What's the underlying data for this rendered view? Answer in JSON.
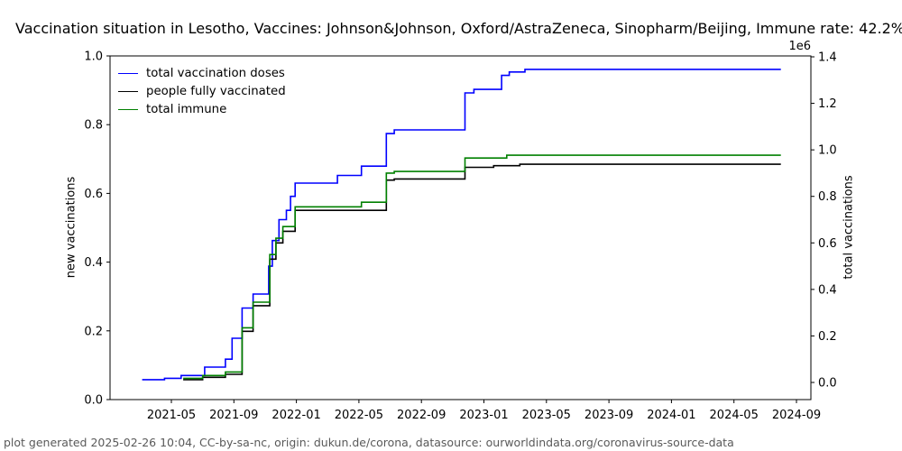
{
  "title": "Vaccination situation in Lesotho, Vaccines: Johnson&Johnson, Oxford/AstraZeneca, Sinopharm/Beijing, Immune rate: 42.2%",
  "footer": "plot generated 2025-02-26 10:04, CC-by-sa-nc, origin: dukun.de/corona, datasource: ourworldindata.org/coronavirus-source-data",
  "colors": {
    "total_vaccination_doses": "#0000ff",
    "people_fully_vaccinated": "#000000",
    "total_immune": "#008000",
    "axis": "#000000",
    "footer_text": "#595959"
  },
  "chart_data": {
    "type": "line",
    "step_style": "step-after",
    "title": "Vaccination situation in Lesotho, Vaccines: Johnson&Johnson, Oxford/AstraZeneca, Sinopharm/Beijing, Immune rate: 42.2%",
    "grid": false,
    "legend_position": "upper left",
    "legend": [
      "total vaccination doses",
      "people fully vaccinated",
      "total immune"
    ],
    "left_axis": {
      "label": "new vaccinations",
      "ticks": [
        "0.0",
        "0.2",
        "0.4",
        "0.6",
        "0.8",
        "1.0"
      ],
      "range": [
        0.0,
        1.0
      ]
    },
    "right_axis": {
      "label": "total vaccinations",
      "offset_text": "1e6",
      "ticks": [
        "0.0",
        "0.2",
        "0.4",
        "0.6",
        "0.8",
        "1.0",
        "1.2",
        "1.4"
      ],
      "range_e6": [
        -0.074,
        1.404
      ]
    },
    "x_axis": {
      "ticks": [
        "2021-05",
        "2021-09",
        "2022-01",
        "2022-05",
        "2022-09",
        "2023-01",
        "2023-05",
        "2023-09",
        "2024-01",
        "2024-05",
        "2024-09"
      ],
      "range": [
        "2021-01-03",
        "2024-09-28"
      ]
    },
    "series": [
      {
        "name": "total vaccination doses",
        "color": "#0000ff",
        "axis": "right",
        "unit": "1e6 doses",
        "points": [
          [
            "2021-03-05",
            0.012
          ],
          [
            "2021-04-18",
            0.018
          ],
          [
            "2021-05-20",
            0.03
          ],
          [
            "2021-07-05",
            0.066
          ],
          [
            "2021-08-15",
            0.1
          ],
          [
            "2021-08-28",
            0.19
          ],
          [
            "2021-09-17",
            0.32
          ],
          [
            "2021-10-08",
            0.38
          ],
          [
            "2021-11-08",
            0.5
          ],
          [
            "2021-11-15",
            0.61
          ],
          [
            "2021-11-28",
            0.7
          ],
          [
            "2021-12-12",
            0.74
          ],
          [
            "2021-12-20",
            0.8
          ],
          [
            "2021-12-29",
            0.857
          ],
          [
            "2022-03-20",
            0.89
          ],
          [
            "2022-05-06",
            0.93
          ],
          [
            "2022-06-24",
            1.07
          ],
          [
            "2022-07-09",
            1.086
          ],
          [
            "2022-11-25",
            1.245
          ],
          [
            "2022-12-12",
            1.26
          ],
          [
            "2023-02-05",
            1.32
          ],
          [
            "2023-02-20",
            1.335
          ],
          [
            "2023-03-20",
            1.346
          ],
          [
            "2024-08-01",
            1.346
          ]
        ]
      },
      {
        "name": "people fully vaccinated",
        "color": "#000000",
        "axis": "right",
        "unit": "1e6 people",
        "points": [
          [
            "2021-05-24",
            0.012
          ],
          [
            "2021-07-01",
            0.022
          ],
          [
            "2021-08-15",
            0.035
          ],
          [
            "2021-09-17",
            0.22
          ],
          [
            "2021-10-08",
            0.33
          ],
          [
            "2021-11-10",
            0.53
          ],
          [
            "2021-11-22",
            0.6
          ],
          [
            "2021-12-05",
            0.65
          ],
          [
            "2021-12-29",
            0.74
          ],
          [
            "2022-06-24",
            0.87
          ],
          [
            "2022-07-09",
            0.875
          ],
          [
            "2022-11-25",
            0.925
          ],
          [
            "2023-01-20",
            0.932
          ],
          [
            "2023-03-10",
            0.938
          ],
          [
            "2024-08-01",
            0.938
          ]
        ]
      },
      {
        "name": "total immune",
        "color": "#008000",
        "axis": "right",
        "unit": "1e6 people",
        "points": [
          [
            "2021-05-24",
            0.018
          ],
          [
            "2021-07-01",
            0.03
          ],
          [
            "2021-08-15",
            0.045
          ],
          [
            "2021-09-17",
            0.235
          ],
          [
            "2021-10-08",
            0.345
          ],
          [
            "2021-11-10",
            0.55
          ],
          [
            "2021-11-22",
            0.62
          ],
          [
            "2021-12-05",
            0.67
          ],
          [
            "2021-12-29",
            0.755
          ],
          [
            "2022-05-06",
            0.775
          ],
          [
            "2022-06-24",
            0.9
          ],
          [
            "2022-07-09",
            0.907
          ],
          [
            "2022-11-25",
            0.965
          ],
          [
            "2023-02-15",
            0.977
          ],
          [
            "2024-08-01",
            0.977
          ]
        ]
      }
    ]
  }
}
